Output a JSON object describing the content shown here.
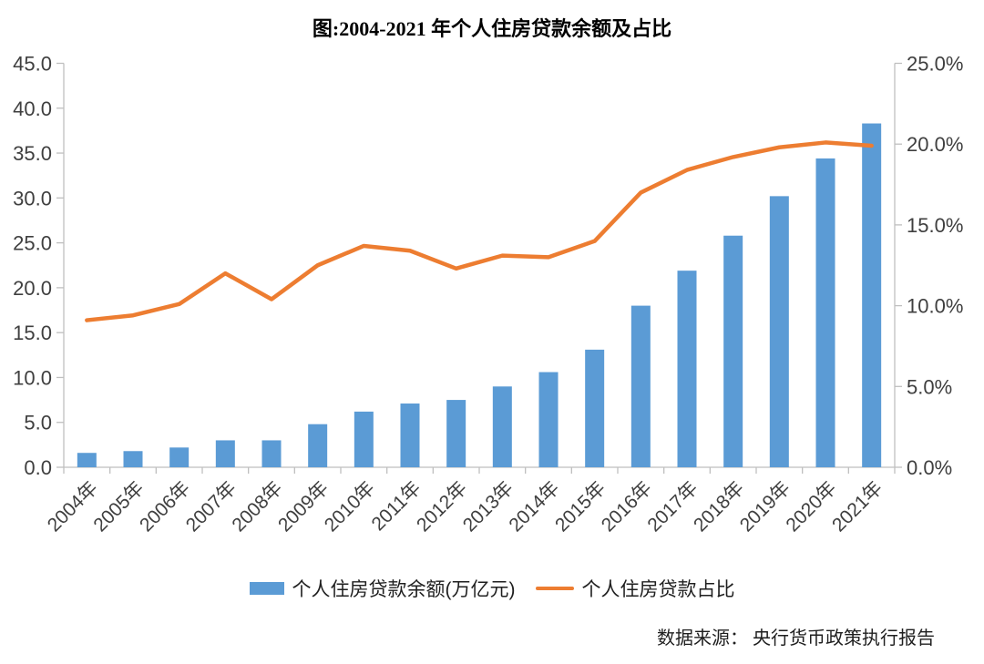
{
  "title": "图:2004-2021 年个人住房贷款余额及占比",
  "source": "数据来源： 央行货币政策执行报告",
  "colors": {
    "bar": "#5B9BD5",
    "line": "#ED7D31",
    "axis": "#BFBFBF",
    "text": "#3F3F3F"
  },
  "chart_data": {
    "type": "combo",
    "title": "图:2004-2021 年个人住房贷款余额及占比",
    "categories": [
      "2004年",
      "2005年",
      "2006年",
      "2007年",
      "2008年",
      "2009年",
      "2010年",
      "2011年",
      "2012年",
      "2013年",
      "2014年",
      "2015年",
      "2016年",
      "2017年",
      "2018年",
      "2019年",
      "2020年",
      "2021年"
    ],
    "series": [
      {
        "name": "个人住房贷款余额(万亿元)",
        "type": "bar",
        "axis": "left",
        "values": [
          1.6,
          1.8,
          2.2,
          3.0,
          3.0,
          4.8,
          6.2,
          7.1,
          7.5,
          9.0,
          10.6,
          13.1,
          18.0,
          21.9,
          25.8,
          30.2,
          34.4,
          38.3
        ]
      },
      {
        "name": "个人住房贷款占比",
        "type": "line",
        "axis": "right",
        "values": [
          9.1,
          9.4,
          10.1,
          12.0,
          10.4,
          12.5,
          13.7,
          13.4,
          12.3,
          13.1,
          13.0,
          14.0,
          17.0,
          18.4,
          19.2,
          19.8,
          20.1,
          19.9
        ]
      }
    ],
    "left_axis": {
      "min": 0,
      "max": 45,
      "step": 5,
      "ticks": [
        "0.0",
        "5.0",
        "10.0",
        "15.0",
        "20.0",
        "25.0",
        "30.0",
        "35.0",
        "40.0",
        "45.0"
      ]
    },
    "right_axis": {
      "min": 0,
      "max": 25,
      "step": 5,
      "ticks": [
        "0.0%",
        "5.0%",
        "10.0%",
        "15.0%",
        "20.0%",
        "25.0%"
      ]
    },
    "grid": false,
    "legend_position": "bottom"
  }
}
